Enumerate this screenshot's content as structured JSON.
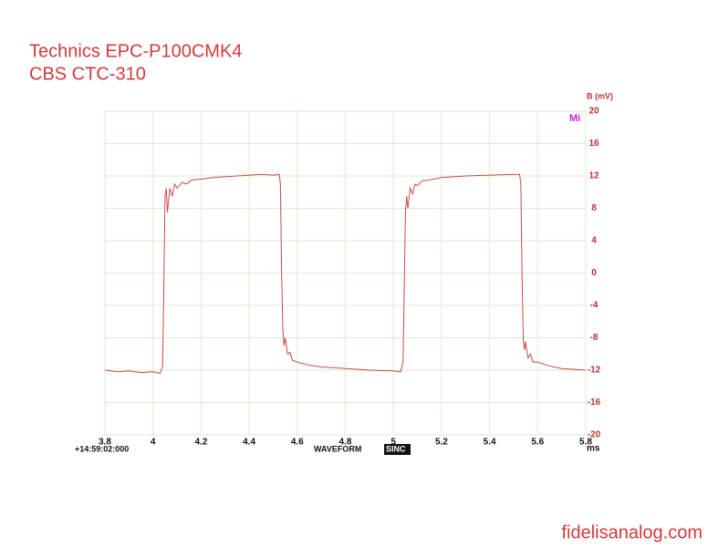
{
  "chart_data": {
    "type": "line",
    "title": "Technics EPC-P100CMK4",
    "subtitle": "CBS CTC-310",
    "y_label": "B (mV)",
    "x_label": "ms",
    "marker_label": "Mi",
    "timestamp": "+14:59:02:000",
    "mode": "WAVEFORM",
    "function": "SINC",
    "source": "fidelisanalog.com",
    "color": "#c84a4a",
    "grid": true,
    "xlim": [
      3.8,
      5.8
    ],
    "xticks": [
      3.8,
      4,
      4.2,
      4.4,
      4.6,
      4.8,
      5,
      5.2,
      5.4,
      5.6,
      5.8
    ],
    "ylim": [
      -20,
      20
    ],
    "yticks": [
      20,
      16,
      12,
      8,
      4,
      0,
      -4,
      -8,
      -12,
      -16,
      -20
    ],
    "x": [
      3.8,
      3.85,
      3.9,
      3.95,
      4.0,
      4.03,
      4.04,
      4.045,
      4.05,
      4.055,
      4.06,
      4.065,
      4.07,
      4.08,
      4.09,
      4.1,
      4.12,
      4.14,
      4.16,
      4.2,
      4.25,
      4.3,
      4.35,
      4.4,
      4.45,
      4.5,
      4.525,
      4.53,
      4.535,
      4.54,
      4.545,
      4.55,
      4.56,
      4.57,
      4.58,
      4.6,
      4.65,
      4.7,
      4.8,
      4.9,
      5.0,
      5.03,
      5.04,
      5.045,
      5.05,
      5.055,
      5.06,
      5.07,
      5.08,
      5.09,
      5.1,
      5.12,
      5.15,
      5.2,
      5.3,
      5.4,
      5.5,
      5.525,
      5.53,
      5.535,
      5.54,
      5.545,
      5.55,
      5.56,
      5.57,
      5.58,
      5.6,
      5.65,
      5.7,
      5.8
    ],
    "values": [
      -12,
      -12.2,
      -12.1,
      -12.3,
      -12.2,
      -12.4,
      -11.5,
      -2,
      9.5,
      10.5,
      7.5,
      9,
      10.5,
      9.5,
      11,
      10.5,
      11.2,
      11,
      11.5,
      11.6,
      11.8,
      11.9,
      12,
      12.1,
      12.2,
      12.1,
      12.2,
      11,
      0,
      -7,
      -9,
      -8,
      -10,
      -9.8,
      -10.8,
      -11,
      -11.4,
      -11.6,
      -11.8,
      -12,
      -12.1,
      -12.2,
      -11,
      -2,
      7.5,
      9.5,
      8,
      10.5,
      9.8,
      11,
      10.8,
      11.4,
      11.5,
      11.8,
      12,
      12.1,
      12.2,
      12.2,
      11,
      0,
      -8,
      -9.5,
      -8.5,
      -10.5,
      -10,
      -11,
      -11,
      -11.5,
      -11.8,
      -12
    ]
  }
}
